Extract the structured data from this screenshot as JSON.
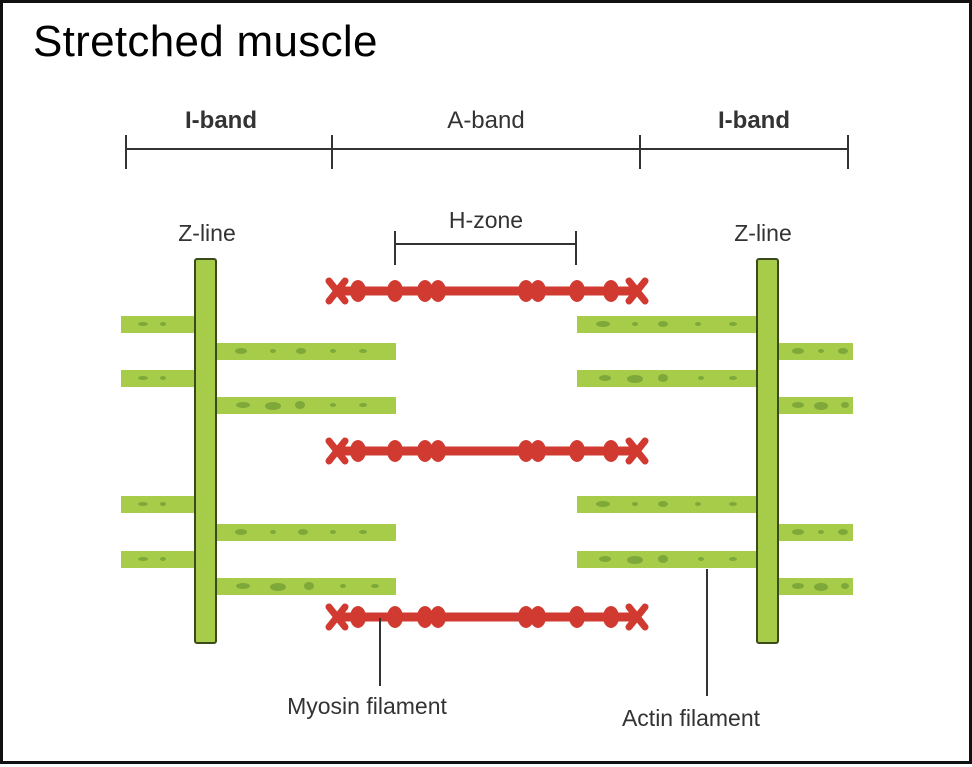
{
  "title": "Stretched muscle",
  "bands": {
    "left_i_band": "I-band",
    "a_band": "A-band",
    "right_i_band": "I-band"
  },
  "h_zone": "H-zone",
  "z_line_left": "Z-line",
  "z_line_right": "Z-line",
  "myosin_label": "Myosin filament",
  "actin_label": "Actin filament",
  "colors": {
    "actin": "#a6cc4a",
    "z_line": "#a6cc4a",
    "myosin": "#d03a30",
    "label_text": "#333333"
  }
}
